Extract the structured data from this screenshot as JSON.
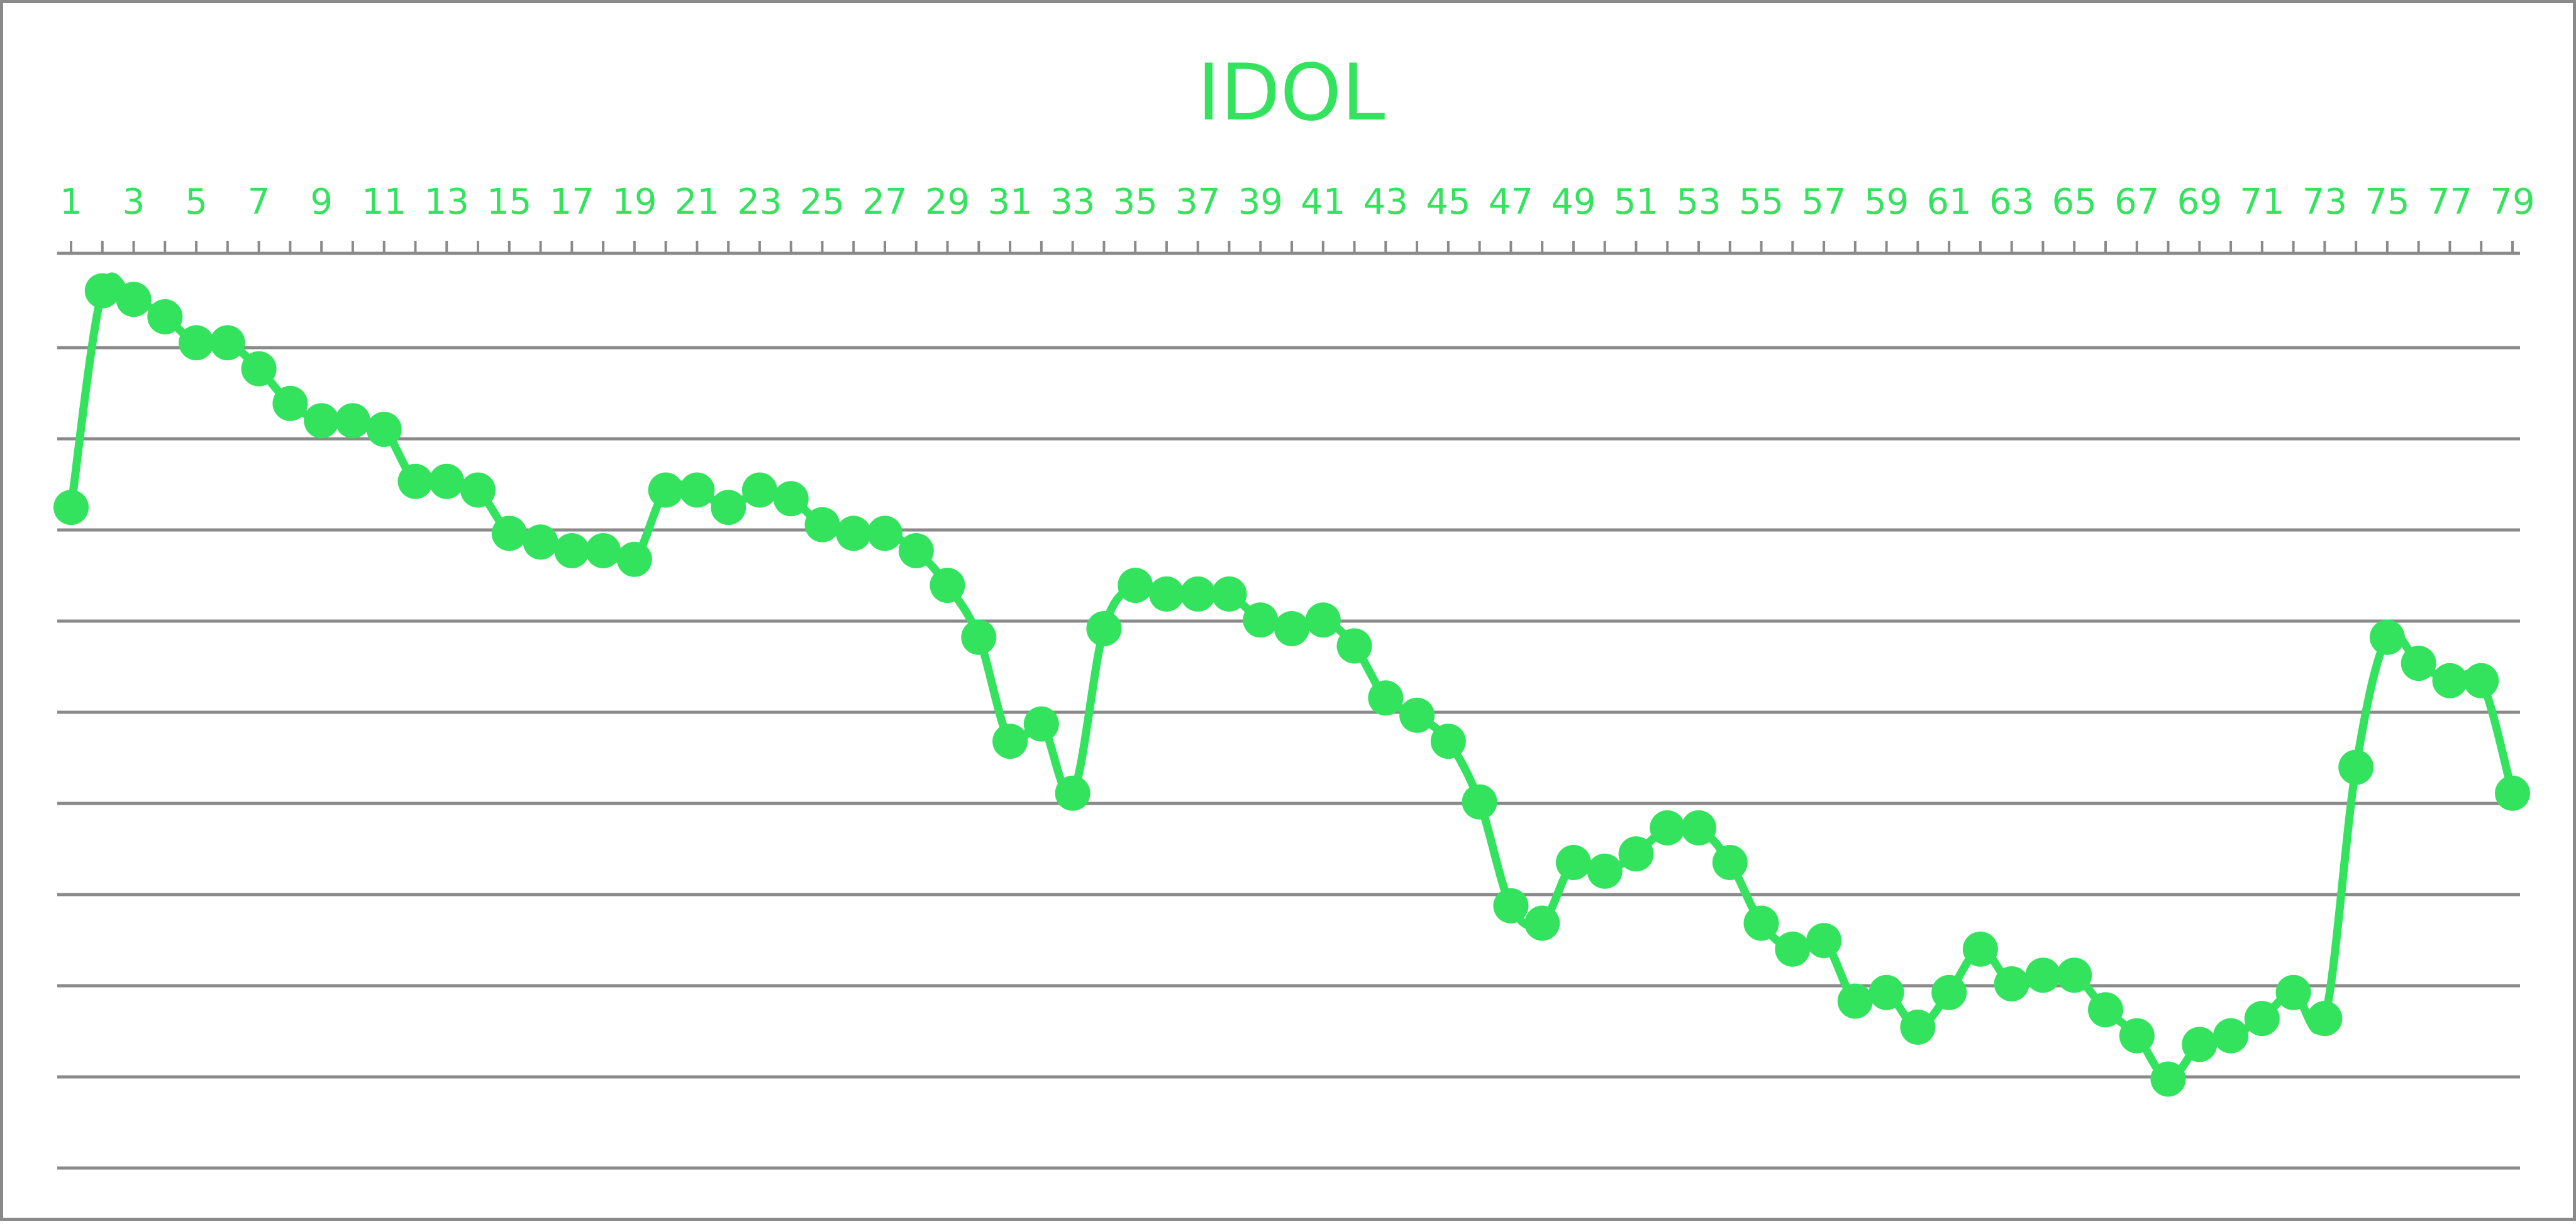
{
  "chart_data": {
    "type": "line",
    "title": "IDOL",
    "xlabel": "",
    "ylabel": "",
    "x_tick_labels": [
      "1",
      "3",
      "5",
      "7",
      "9",
      "11",
      "13",
      "15",
      "17",
      "19",
      "21",
      "23",
      "25",
      "27",
      "29",
      "31",
      "33",
      "35",
      "37",
      "39",
      "41",
      "43",
      "45",
      "47",
      "49",
      "51",
      "53",
      "55",
      "57",
      "59",
      "61",
      "63",
      "65",
      "67",
      "69",
      "71",
      "73",
      "75",
      "77",
      "79"
    ],
    "x": [
      1,
      2,
      3,
      4,
      5,
      6,
      7,
      8,
      9,
      10,
      11,
      12,
      13,
      14,
      15,
      16,
      17,
      18,
      19,
      20,
      21,
      22,
      23,
      24,
      25,
      26,
      27,
      28,
      29,
      30,
      31,
      32,
      33,
      34,
      35,
      36,
      37,
      38,
      39,
      40,
      41,
      42,
      43,
      44,
      45,
      46,
      47,
      48,
      49,
      50,
      51,
      52,
      53,
      54,
      55,
      56,
      57,
      58,
      59,
      60,
      61,
      62,
      63,
      64,
      65,
      66,
      67,
      68,
      69,
      70,
      71,
      72,
      73,
      74,
      75,
      76,
      77,
      78,
      79
    ],
    "xlim": [
      1,
      79
    ],
    "ylim": [
      0,
      10
    ],
    "y_axis_inverted": true,
    "y_tick_labels_shown": false,
    "grid": true,
    "legend": "none",
    "series": [
      {
        "values": [
          2.7,
          0.2,
          0.3,
          0.5,
          0.8,
          0.8,
          1.1,
          1.5,
          1.7,
          1.7,
          1.8,
          2.4,
          2.4,
          2.5,
          3.0,
          3.1,
          3.2,
          3.2,
          3.3,
          2.5,
          2.5,
          2.7,
          2.5,
          2.6,
          2.9,
          3.0,
          3.0,
          3.2,
          3.6,
          4.2,
          5.4,
          5.2,
          6.0,
          4.1,
          3.6,
          3.7,
          3.7,
          3.7,
          4.0,
          4.1,
          4.0,
          4.3,
          4.9,
          5.1,
          5.4,
          6.1,
          7.3,
          7.5,
          6.8,
          6.9,
          6.7,
          6.4,
          6.4,
          6.8,
          7.5,
          7.8,
          7.7,
          8.4,
          8.3,
          8.7,
          8.3,
          7.8,
          8.2,
          8.1,
          8.1,
          8.5,
          8.8,
          9.3,
          8.9,
          8.8,
          8.6,
          8.3,
          8.6,
          5.7,
          4.2,
          4.5,
          4.7,
          4.7,
          6.0
        ]
      }
    ],
    "colors": {
      "series": "#33e35d",
      "title": "#33e35d",
      "tick_labels": "#33e35d",
      "grid": "#8a8a8a",
      "axis": "#8a8a8a",
      "frame": "#8a8a8a",
      "background": "#ffffff"
    }
  }
}
